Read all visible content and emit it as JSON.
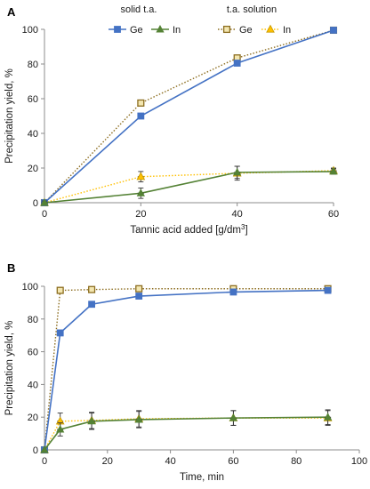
{
  "chart_data": [
    {
      "type": "line",
      "panel_label": "A",
      "xlabel": "Tannic acid added [g/dm",
      "xlabel_sup": "3",
      "xlabel_end": "]",
      "ylabel": "Precipitation yield, %",
      "xlim": [
        0,
        60
      ],
      "ylim": [
        0,
        100
      ],
      "xticks": [
        0,
        20,
        40,
        60
      ],
      "yticks": [
        0,
        20,
        40,
        60,
        80,
        100
      ],
      "legend_groups": [
        "solid t.a.",
        "t.a. solution"
      ],
      "legend_placement": "top",
      "grid": false,
      "series": [
        {
          "name": "Ge",
          "group": "solid t.a.",
          "style": "solid",
          "marker": "square",
          "color": "#4472C4",
          "x": [
            0,
            20,
            40,
            60
          ],
          "y": [
            0,
            50,
            80.5,
            99.5
          ],
          "err": [
            0,
            1.2,
            1.2,
            0.5
          ]
        },
        {
          "name": "In",
          "group": "solid t.a.",
          "style": "solid",
          "marker": "triangle",
          "color": "#548235",
          "x": [
            0,
            20,
            40,
            60
          ],
          "y": [
            0,
            5.5,
            17.5,
            18
          ],
          "err": [
            1,
            3,
            3.5,
            1.5
          ]
        },
        {
          "name": "Ge",
          "group": "t.a. solution",
          "style": "dotted",
          "marker": "open-square",
          "color": "#8C6D1F",
          "x": [
            0,
            20,
            40,
            60
          ],
          "y": [
            0,
            57.5,
            83.5,
            99.5
          ],
          "err": [
            0,
            1.2,
            1.2,
            0.5
          ]
        },
        {
          "name": "In",
          "group": "t.a. solution",
          "style": "dotted",
          "marker": "open-triangle",
          "color": "#FFC000",
          "x": [
            0,
            20,
            40,
            60
          ],
          "y": [
            0,
            15,
            17,
            18.5
          ],
          "err": [
            0,
            3,
            4,
            1.5
          ]
        }
      ]
    },
    {
      "type": "line",
      "panel_label": "B",
      "xlabel": "Time, min",
      "ylabel": "Precipitation yield, %",
      "xlim": [
        0,
        100
      ],
      "ylim": [
        0,
        100
      ],
      "xticks": [
        0,
        20,
        40,
        60,
        80,
        100
      ],
      "yticks": [
        0,
        20,
        40,
        60,
        80,
        100
      ],
      "grid": false,
      "series": [
        {
          "name": "Ge",
          "group": "solid t.a.",
          "style": "solid",
          "marker": "square",
          "color": "#4472C4",
          "x": [
            0,
            5,
            15,
            30,
            60,
            90
          ],
          "y": [
            0,
            71.5,
            89,
            94,
            96.5,
            97.5
          ],
          "err": [
            0,
            1,
            1,
            1,
            1,
            1
          ]
        },
        {
          "name": "In",
          "group": "solid t.a.",
          "style": "solid",
          "marker": "triangle",
          "color": "#548235",
          "x": [
            0,
            5,
            15,
            30,
            60,
            90
          ],
          "y": [
            0,
            12.5,
            17.5,
            18.5,
            19.5,
            20
          ],
          "err": [
            0,
            4,
            5,
            5,
            4.5,
            4.5
          ]
        },
        {
          "name": "Ge",
          "group": "t.a. solution",
          "style": "dotted",
          "marker": "open-square",
          "color": "#8C6D1F",
          "x": [
            0,
            5,
            15,
            30,
            60,
            90
          ],
          "y": [
            0,
            97.5,
            98,
            98.5,
            98.5,
            98.5
          ],
          "err": [
            0,
            1,
            1,
            1,
            1,
            1
          ]
        },
        {
          "name": "In",
          "group": "t.a. solution",
          "style": "dotted",
          "marker": "open-triangle",
          "color": "#FFC000",
          "x": [
            0,
            5,
            15,
            30,
            60,
            90
          ],
          "y": [
            0,
            17.5,
            18,
            19,
            19.5,
            19.5
          ],
          "err": [
            0,
            5,
            5,
            5,
            4.5,
            4.5
          ]
        }
      ]
    }
  ]
}
